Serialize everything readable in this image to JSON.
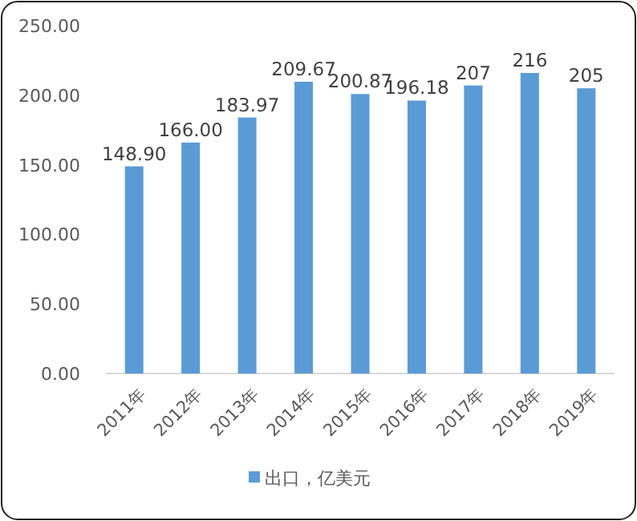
{
  "chart_data": {
    "type": "bar",
    "categories": [
      "2011年",
      "2012年",
      "2013年",
      "2014年",
      "2015年",
      "2016年",
      "2017年",
      "2018年",
      "2019年"
    ],
    "series": [
      {
        "name": "出口，亿美元",
        "color": "#5b9bd5",
        "values": [
          148.9,
          166,
          183.97,
          209.67,
          200.87,
          196.18,
          207,
          216,
          205
        ],
        "value_labels": [
          "148.90",
          "166.00",
          "183.97",
          "209.67",
          "200.87",
          "196.18",
          "207",
          "216",
          "205"
        ]
      }
    ],
    "ylim": [
      0,
      250
    ],
    "yticks": [
      {
        "value": 0,
        "label": "0.00"
      },
      {
        "value": 50,
        "label": "50.00"
      },
      {
        "value": 100,
        "label": "100.00"
      },
      {
        "value": 150,
        "label": "150.00"
      },
      {
        "value": 200,
        "label": "200.00"
      },
      {
        "value": 250,
        "label": "250.00"
      }
    ],
    "grid": false,
    "legend": "bottom"
  }
}
